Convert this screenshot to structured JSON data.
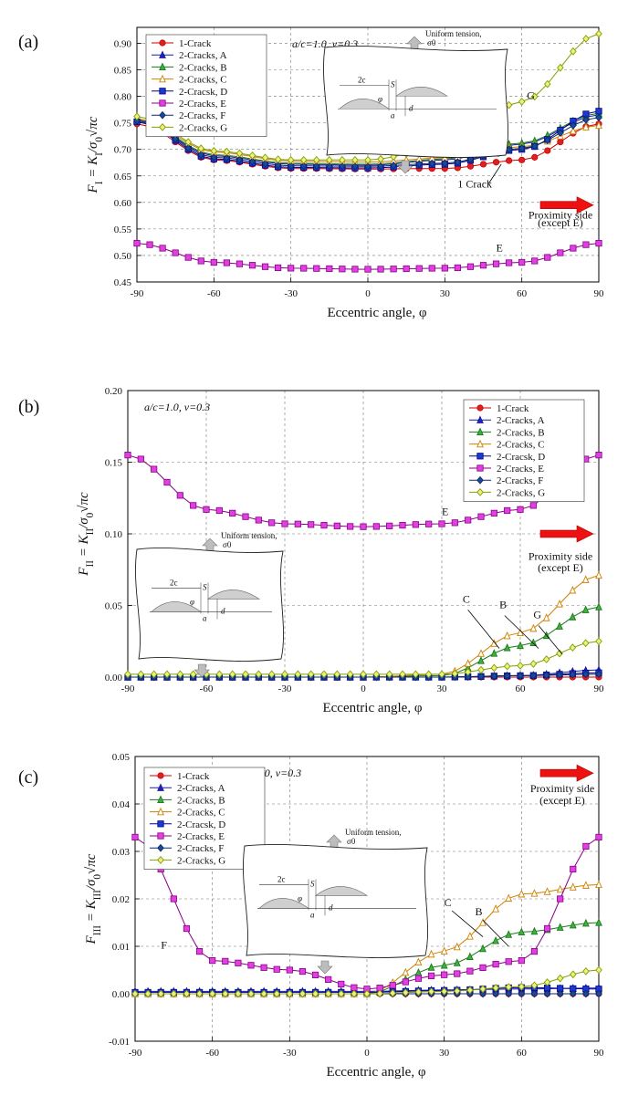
{
  "chart_data": [
    {
      "panel": "(a)",
      "type": "line",
      "xlabel": "Eccentric angle, φ",
      "ylabel": "F_I = K_I/σ_0√πc",
      "ylabel_parts": {
        "main": "F",
        "sub": "I",
        "rest": " = K",
        "sub2": "I",
        "tail": "/σ",
        "sub3": "0",
        "root": "√πc"
      },
      "xlim": [
        -90,
        90
      ],
      "ylim": [
        0.45,
        0.93
      ],
      "x_ticks": [
        "-90",
        "-60",
        "-30",
        "0",
        "30",
        "60",
        "90"
      ],
      "y_ticks": [
        "0.45",
        "0.50",
        "0.55",
        "0.60",
        "0.65",
        "0.70",
        "0.75",
        "0.80",
        "0.85",
        "0.90"
      ],
      "y_tick_values": [
        0.45,
        0.5,
        0.55,
        0.6,
        0.65,
        0.7,
        0.75,
        0.8,
        0.85,
        0.9
      ],
      "condition_text": "a/c=1.0, ν=0.3",
      "inset": {
        "tension_label": "Uniform tension,",
        "sigma": "σ0",
        "crack_width": "2c",
        "spacing": "S",
        "depth_small": "a",
        "depth": "d",
        "angle": "φ"
      },
      "annotations": {
        "g": "G",
        "e": "E",
        "one_crack": "1 Crack",
        "proximity_line1": "Proximity side",
        "proximity_line2": "(except E)"
      },
      "legend": [
        "1-Crack",
        "2-Cracks, A",
        "2-Cracks, B",
        "2-Cracks, C",
        "2-Cracsk, D",
        "2-Cracks, E",
        "2-Cracks, F",
        "2-Cracks, G"
      ],
      "grid": true,
      "series": [
        {
          "name": "1-Crack",
          "marker": "circle",
          "color": "#cc0000",
          "fill": "#e02020",
          "model": [
            0.748,
            0.68,
            0.664,
            0.663,
            0.664,
            0.68,
            0.748
          ]
        },
        {
          "name": "2-Cracks, A",
          "marker": "triangle",
          "color": "#1a1aaa",
          "fill": "#2020c0",
          "model": [
            0.755,
            0.688,
            0.672,
            0.67,
            0.68,
            0.71,
            0.765
          ]
        },
        {
          "name": "2-Cracks, B",
          "marker": "triangle",
          "color": "#1a7a1a",
          "fill": "#40b040",
          "model": [
            0.757,
            0.69,
            0.674,
            0.672,
            0.682,
            0.712,
            0.768
          ]
        },
        {
          "name": "2-Cracks, C",
          "marker": "triangle-open",
          "color": "#d08000",
          "fill": "#ffffff",
          "model": [
            0.758,
            0.695,
            0.678,
            0.676,
            0.684,
            0.705,
            0.745
          ]
        },
        {
          "name": "2-Cracsk, D",
          "marker": "square",
          "color": "#000088",
          "fill": "#1a3ad0",
          "model": [
            0.752,
            0.682,
            0.666,
            0.665,
            0.672,
            0.7,
            0.772
          ]
        },
        {
          "name": "2-Cracks, E",
          "marker": "square",
          "color": "#880088",
          "fill": "#e040e0",
          "model": [
            0.523,
            0.487,
            0.476,
            0.474,
            0.476,
            0.487,
            0.523
          ]
        },
        {
          "name": "2-Cracks, F",
          "marker": "diamond",
          "color": "#0a2a6a",
          "fill": "#1a4a9a",
          "model": [
            0.754,
            0.685,
            0.669,
            0.668,
            0.674,
            0.702,
            0.76
          ]
        },
        {
          "name": "2-Cracks, G",
          "marker": "diamond-open",
          "color": "#80a000",
          "fill": "#f0f080",
          "model": [
            0.762,
            0.697,
            0.68,
            0.68,
            0.704,
            0.79,
            0.918
          ]
        }
      ]
    },
    {
      "panel": "(b)",
      "type": "line",
      "xlabel": "Eccentric angle, φ",
      "ylabel": "F_II = K_II/σ_0√πc",
      "ylabel_parts": {
        "main": "F",
        "sub": "II",
        "rest": " = K",
        "sub2": "II",
        "tail": "/σ",
        "sub3": "0",
        "root": "√πc"
      },
      "xlim": [
        -90,
        90
      ],
      "ylim": [
        0,
        0.2
      ],
      "x_ticks": [
        "-90",
        "-60",
        "-30",
        "0",
        "30",
        "60",
        "90"
      ],
      "y_ticks": [
        "0.00",
        "0.05",
        "0.10",
        "0.15",
        "0.20"
      ],
      "y_tick_values": [
        0,
        0.05,
        0.1,
        0.15,
        0.2
      ],
      "condition_text": "a/c=1.0, ν=0.3",
      "inset": {
        "tension_label": "Uniform tension,",
        "sigma": "σ0",
        "crack_width": "2c",
        "spacing": "S",
        "depth_small": "a",
        "depth": "d",
        "angle": "φ"
      },
      "annotations": {
        "e": "E",
        "c": "C",
        "b": "B",
        "g": "G",
        "proximity_line1": "Proximity side",
        "proximity_line2": "(except E)"
      },
      "legend": [
        "1-Crack",
        "2-Cracks, A",
        "2-Cracks, B",
        "2-Cracks, C",
        "2-Cracsk, D",
        "2-Cracks, E",
        "2-Cracks, F",
        "2-Cracks, G"
      ],
      "grid": true,
      "series": [
        {
          "name": "1-Crack",
          "marker": "circle",
          "color": "#cc0000",
          "fill": "#e02020",
          "model": [
            0.0,
            0.0,
            0.0,
            0.0,
            0.0,
            0.0,
            0.0
          ]
        },
        {
          "name": "2-Cracks, A",
          "marker": "triangle",
          "color": "#1a1aaa",
          "fill": "#2020c0",
          "model": [
            0.0,
            0.0,
            0.0,
            0.0,
            0.0,
            0.001,
            0.005
          ]
        },
        {
          "name": "2-Cracks, B",
          "marker": "triangle",
          "color": "#1a7a1a",
          "fill": "#40b040",
          "model": [
            0.0,
            0.0,
            0.0,
            0.0,
            0.001,
            0.022,
            0.049
          ]
        },
        {
          "name": "2-Cracks, C",
          "marker": "triangle-open",
          "color": "#d08000",
          "fill": "#ffffff",
          "model": [
            0.0,
            0.0,
            0.0,
            0.0,
            0.002,
            0.031,
            0.071
          ]
        },
        {
          "name": "2-Cracsk, D",
          "marker": "square",
          "color": "#000088",
          "fill": "#1a3ad0",
          "model": [
            0.0,
            0.0,
            0.0,
            0.0,
            0.0,
            0.001,
            0.003
          ]
        },
        {
          "name": "2-Cracks, E",
          "marker": "square",
          "color": "#880088",
          "fill": "#e040e0",
          "model": [
            0.155,
            0.117,
            0.107,
            0.105,
            0.107,
            0.117,
            0.155
          ]
        },
        {
          "name": "2-Cracks, F",
          "marker": "diamond",
          "color": "#0a2a6a",
          "fill": "#1a4a9a",
          "model": [
            0.0,
            0.0,
            0.0,
            0.0,
            0.0,
            0.001,
            0.002
          ]
        },
        {
          "name": "2-Cracks, G",
          "marker": "diamond-open",
          "color": "#80a000",
          "fill": "#f0f080",
          "model": [
            0.002,
            0.002,
            0.002,
            0.002,
            0.002,
            0.008,
            0.025
          ]
        }
      ]
    },
    {
      "panel": "(c)",
      "type": "line",
      "xlabel": "Eccentric angle, φ",
      "ylabel": "F_III = K_III/σ_0√πc",
      "ylabel_parts": {
        "main": "F",
        "sub": "III",
        "rest": " = K",
        "sub2": "III",
        "tail": "/σ",
        "sub3": "0",
        "root": "√πc"
      },
      "xlim": [
        -90,
        90
      ],
      "ylim": [
        -0.01,
        0.05
      ],
      "x_ticks": [
        "-90",
        "-60",
        "-30",
        "0",
        "30",
        "60",
        "90"
      ],
      "y_ticks": [
        "-0.01",
        "0.00",
        "0.01",
        "0.02",
        "0.03",
        "0.04",
        "0.05"
      ],
      "y_tick_values": [
        -0.01,
        0,
        0.01,
        0.02,
        0.03,
        0.04,
        0.05
      ],
      "condition_text": "a/c=1.0, ν=0.3",
      "inset": {
        "tension_label": "Uniform tension,",
        "sigma": "σ0",
        "crack_width": "2c",
        "spacing": "S",
        "depth_small": "a",
        "depth": "d",
        "angle": "φ"
      },
      "annotations": {
        "f": "F",
        "c": "C",
        "b": "B",
        "proximity_line1": "Proximity side",
        "proximity_line2": "(except E)"
      },
      "legend": [
        "1-Crack",
        "2-Cracks, A",
        "2-Cracks, B",
        "2-Cracks, C",
        "2-Cracsk, D",
        "2-Cracks, E",
        "2-Cracks, F",
        "2-Cracks, G"
      ],
      "grid": true,
      "series": [
        {
          "name": "1-Crack",
          "marker": "circle",
          "color": "#cc0000",
          "fill": "#e02020",
          "model": [
            0.0,
            0.0,
            0.0,
            0.0,
            0.0,
            0.0,
            0.0
          ]
        },
        {
          "name": "2-Cracks, A",
          "marker": "triangle",
          "color": "#1a1aaa",
          "fill": "#2020c0",
          "model": [
            0.0005,
            0.0005,
            0.0005,
            0.0005,
            0.0008,
            0.001,
            0.0012
          ]
        },
        {
          "name": "2-Cracks, B",
          "marker": "triangle",
          "color": "#1a7a1a",
          "fill": "#40b040",
          "model": [
            0.0,
            0.0,
            0.0,
            0.0,
            0.006,
            0.013,
            0.015
          ]
        },
        {
          "name": "2-Cracks, C",
          "marker": "triangle-open",
          "color": "#d08000",
          "fill": "#ffffff",
          "model": [
            0.0,
            0.0,
            0.0,
            0.0,
            0.009,
            0.021,
            0.023
          ]
        },
        {
          "name": "2-Cracsk, D",
          "marker": "square",
          "color": "#000088",
          "fill": "#1a3ad0",
          "model": [
            0.0003,
            0.0003,
            0.0003,
            0.0003,
            0.0007,
            0.0013,
            0.001
          ]
        },
        {
          "name": "2-Cracks, E",
          "marker": "square",
          "color": "#880088",
          "fill": "#e040e0",
          "model": [
            0.033,
            0.007,
            0.005,
            0.001,
            0.004,
            0.007,
            0.033
          ]
        },
        {
          "name": "2-Cracks, F",
          "marker": "diamond",
          "color": "#0a2a6a",
          "fill": "#1a4a9a",
          "model": [
            0.0,
            0.0,
            0.0,
            0.0,
            0.0,
            0.0,
            0.0
          ]
        },
        {
          "name": "2-Cracks, G",
          "marker": "diamond-open",
          "color": "#80a000",
          "fill": "#f0f080",
          "model": [
            0.0,
            0.0,
            0.0,
            0.0,
            0.0005,
            0.0015,
            0.005
          ]
        }
      ]
    }
  ]
}
